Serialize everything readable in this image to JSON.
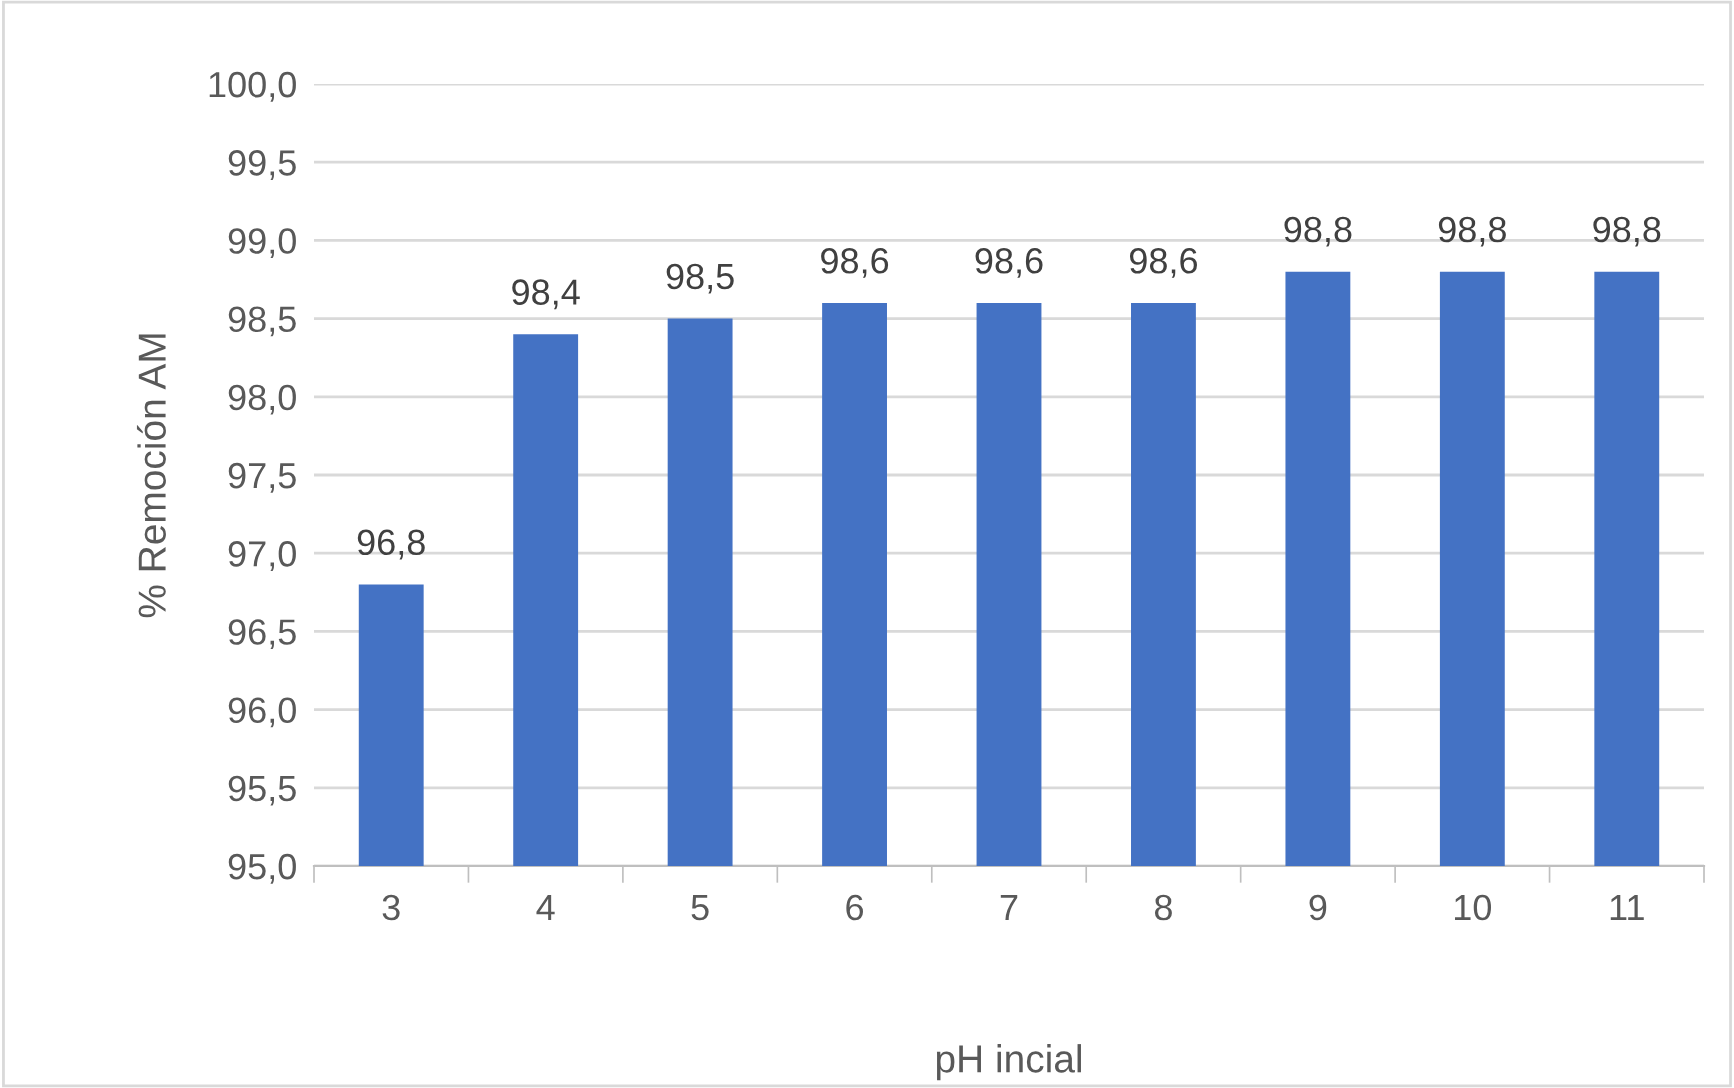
{
  "chart_data": {
    "type": "bar",
    "xlabel": "pH incial",
    "ylabel": "% Remoción AM",
    "categories": [
      "3",
      "4",
      "5",
      "6",
      "7",
      "8",
      "9",
      "10",
      "11"
    ],
    "values": [
      96.8,
      98.4,
      98.5,
      98.6,
      98.6,
      98.6,
      98.8,
      98.8,
      98.8
    ],
    "value_labels": [
      "96,8",
      "98,4",
      "98,5",
      "98,6",
      "98,6",
      "98,6",
      "98,8",
      "98,8",
      "98,8"
    ],
    "color": "#4472c4",
    "ylim": [
      95,
      100
    ],
    "yticks": [
      {
        "value": 95,
        "label": "95,0"
      },
      {
        "value": 95.5,
        "label": "95,5"
      },
      {
        "value": 96,
        "label": "96,0"
      },
      {
        "value": 96.5,
        "label": "96,5"
      },
      {
        "value": 97,
        "label": "97,0"
      },
      {
        "value": 97.5,
        "label": "97,5"
      },
      {
        "value": 98,
        "label": "98,0"
      },
      {
        "value": 98.5,
        "label": "98,5"
      },
      {
        "value": 99,
        "label": "99,0"
      },
      {
        "value": 99.5,
        "label": "99,5"
      },
      {
        "value": 100,
        "label": "100,0"
      }
    ],
    "grid": "y",
    "legend": false
  }
}
